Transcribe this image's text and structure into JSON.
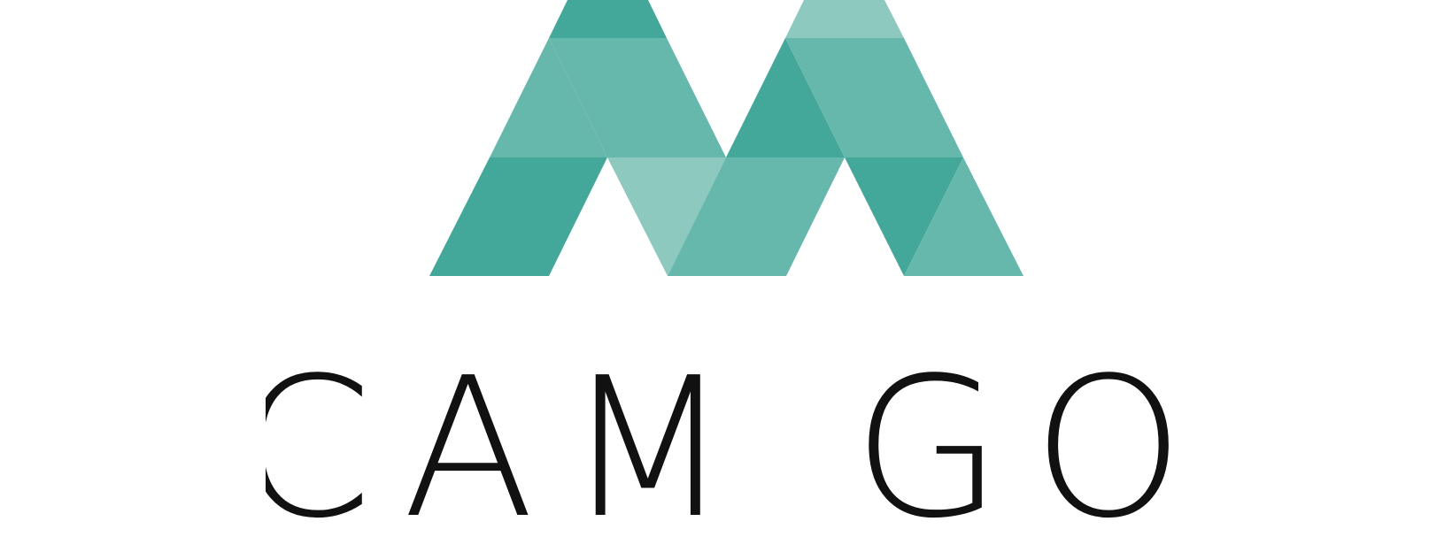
{
  "brand": {
    "name": "CAM GO",
    "colors": {
      "dark": "#43a799",
      "mid": "#67b8ac",
      "light": "#8ec9c0",
      "text": "#111111",
      "background": "#ffffff"
    }
  }
}
